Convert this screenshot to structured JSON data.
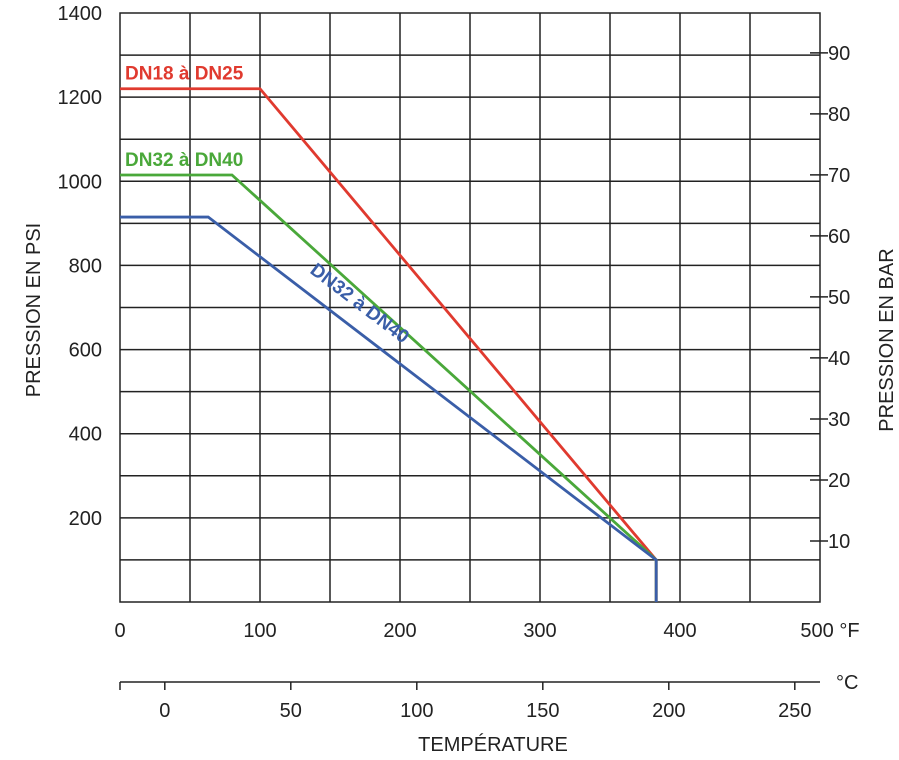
{
  "chart_data": {
    "type": "line",
    "xlabel": "TEMPÉRATURE",
    "ylabel_left": "PRESSION EN PSI",
    "ylabel_right": "PRESSION EN BAR",
    "x_unit_f": "°F",
    "x_unit_c": "°C",
    "xlim_f": [
      0,
      500
    ],
    "ylim_psi": [
      0,
      1400
    ],
    "x_ticks_f": [
      "0",
      "100",
      "200",
      "300",
      "400",
      "500 °F"
    ],
    "x_ticks_c": [
      "0",
      "50",
      "100",
      "150",
      "200",
      "250"
    ],
    "y_ticks_psi": [
      "200",
      "400",
      "600",
      "800",
      "1000",
      "1200",
      "1400"
    ],
    "y_ticks_bar": [
      "10",
      "20",
      "30",
      "40",
      "50",
      "60",
      "70",
      "80",
      "90"
    ],
    "grid": true,
    "series": [
      {
        "name": "DN18 à DN25",
        "color": "#e03a2f",
        "label_rotated": false,
        "points": [
          [
            0,
            1220
          ],
          [
            100,
            1220
          ],
          [
            383,
            100
          ],
          [
            383,
            0
          ]
        ]
      },
      {
        "name": "DN32 à DN40",
        "color": "#4aa83a",
        "label_rotated": false,
        "points": [
          [
            0,
            1015
          ],
          [
            80,
            1015
          ],
          [
            383,
            100
          ],
          [
            383,
            0
          ]
        ]
      },
      {
        "name": "DN32 à DN40",
        "color": "#3a5ea8",
        "label_rotated": true,
        "points": [
          [
            0,
            915
          ],
          [
            63,
            915
          ],
          [
            383,
            100
          ],
          [
            383,
            0
          ]
        ]
      }
    ]
  }
}
